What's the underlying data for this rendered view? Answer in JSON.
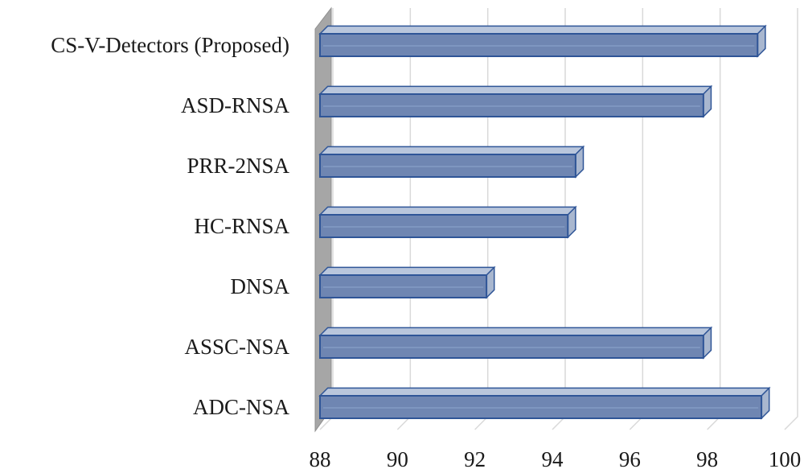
{
  "chart_data": {
    "type": "bar",
    "orientation": "horizontal",
    "title": "",
    "xlabel": "",
    "ylabel": "",
    "categories": [
      "CS-V-Detectors (Proposed)",
      "ASD-RNSA",
      "PRR-2NSA",
      "HC-RNSA",
      "DNSA",
      "ASSC-NSA",
      "ADC-NSA"
    ],
    "values": [
      99.3,
      97.9,
      94.6,
      94.4,
      92.3,
      97.9,
      99.4
    ],
    "xlim": [
      88,
      100
    ],
    "ticks": [
      "88",
      "90",
      "92",
      "94",
      "96",
      "98",
      "100"
    ],
    "grid": true,
    "legend": "none",
    "colors": {
      "bar_fill": "#6f86b2",
      "bar_stroke": "#2f5597",
      "bar_top": "#b9c6dc",
      "bar_side": "#a9b7cf",
      "wall": "#a6a6a6",
      "grid": "#d9d9d9"
    }
  }
}
